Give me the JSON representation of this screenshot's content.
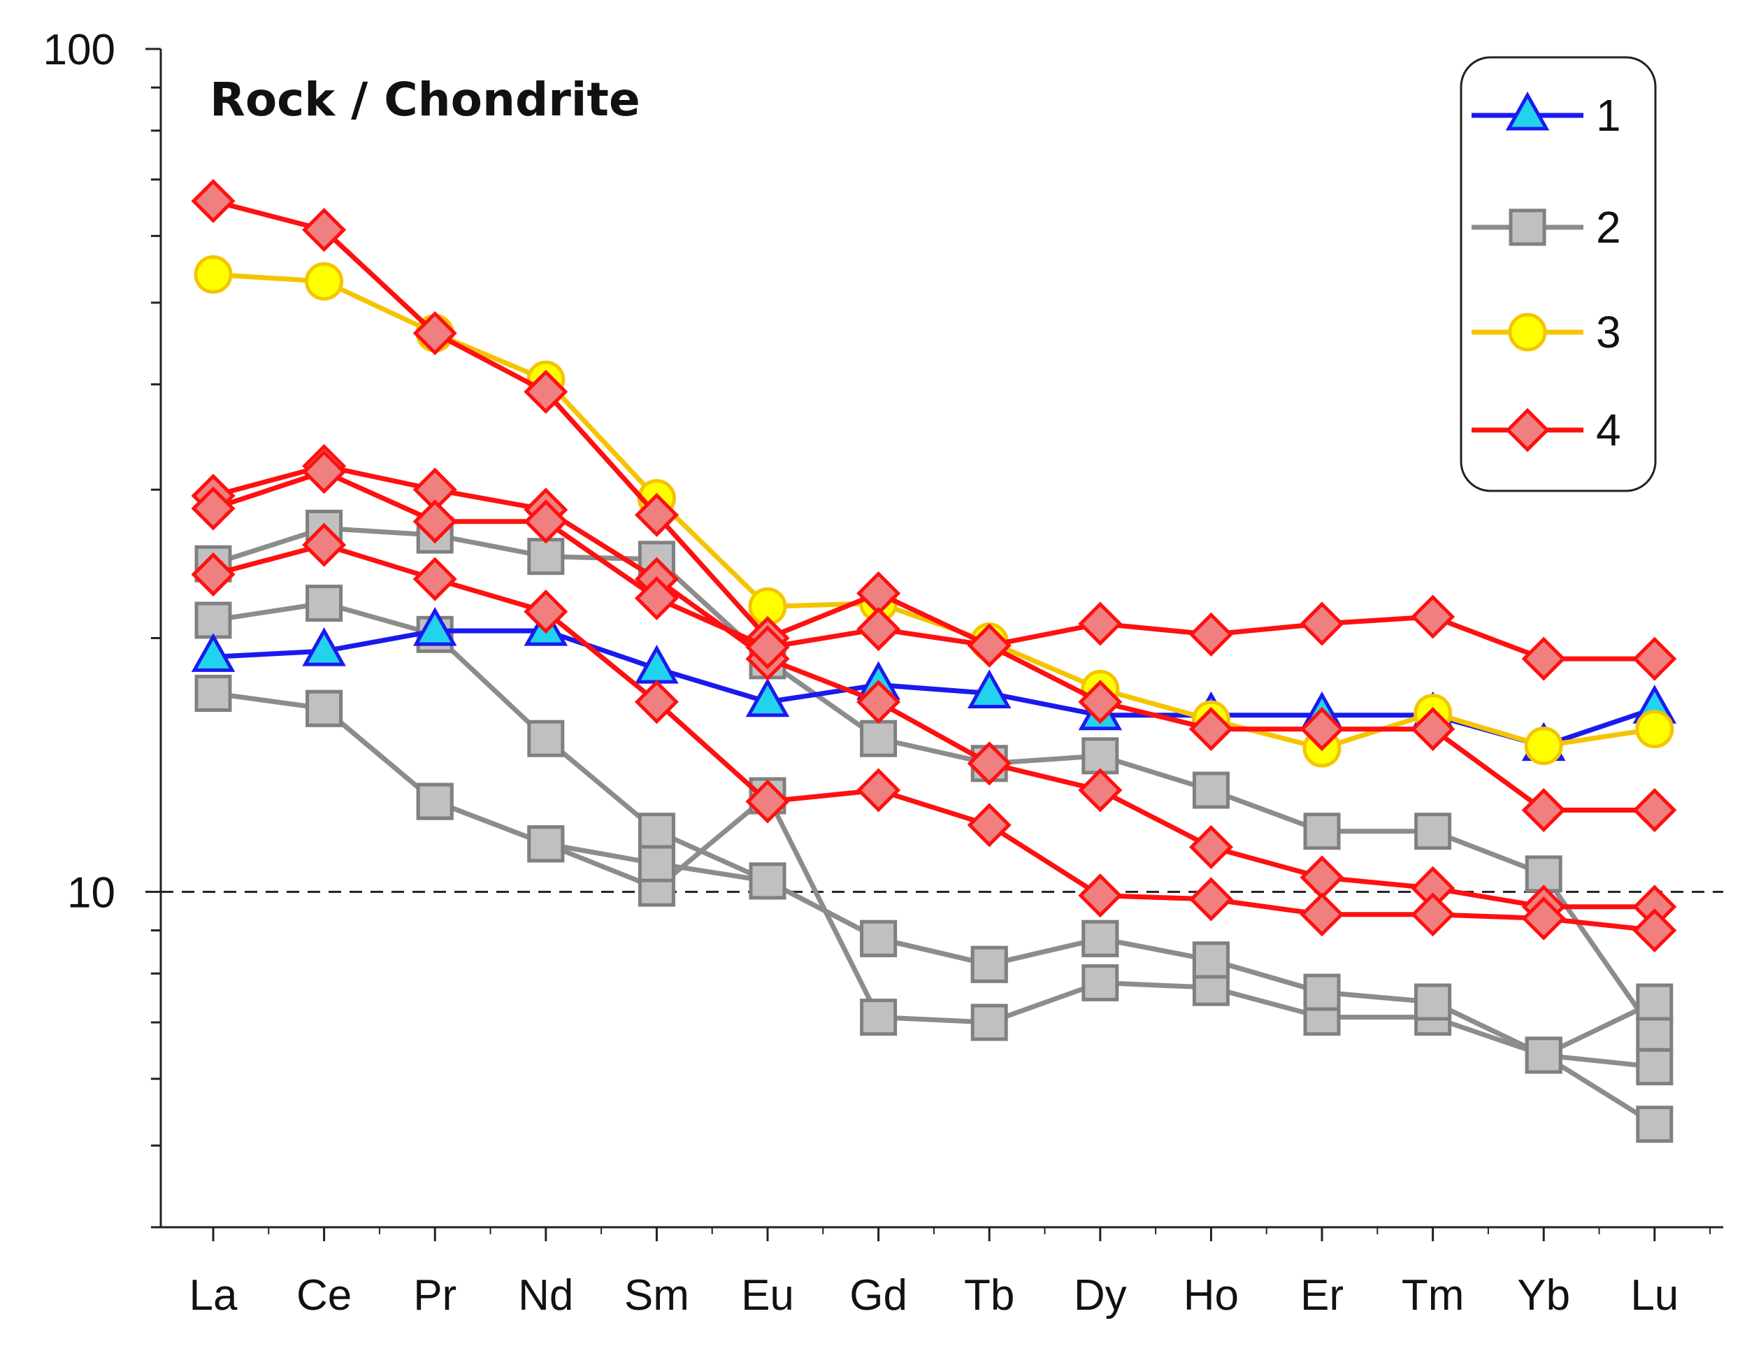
{
  "chart_data": {
    "type": "line",
    "title": "Rock / Chondrite",
    "yscale": "log",
    "ylim": [
      4,
      100
    ],
    "yticks": [
      {
        "value": 100,
        "label": "100"
      },
      {
        "value": 10,
        "label": "10"
      }
    ],
    "reference_line": {
      "value": 10,
      "style": "dashed"
    },
    "categories": [
      "La",
      "Ce",
      "Pr",
      "Nd",
      "Sm",
      "Eu",
      "Gd",
      "Tb",
      "Dy",
      "Ho",
      "Er",
      "Tm",
      "Yb",
      "Lu"
    ],
    "legend_position": "top-right",
    "groups": [
      {
        "name": "1",
        "color": "#1a1aee",
        "marker": "triangle",
        "marker_fill": "#22d3ee",
        "marker_stroke": "#1a1aee"
      },
      {
        "name": "2",
        "color": "#8c8c8c",
        "marker": "square",
        "marker_fill": "#c0c0c0",
        "marker_stroke": "#808080"
      },
      {
        "name": "3",
        "color": "#f5c400",
        "marker": "circle",
        "marker_fill": "#ffff00",
        "marker_stroke": "#f5c400"
      },
      {
        "name": "4",
        "color": "#ff1010",
        "marker": "diamond",
        "marker_fill": "#f08080",
        "marker_stroke": "#ff1010"
      }
    ],
    "series": [
      {
        "group": "2",
        "values": [
          24.5,
          27,
          26.5,
          25,
          24.8,
          18.8,
          15.2,
          14.2,
          14.5,
          13.2,
          11.8,
          11.8,
          10.5,
          6.8
        ]
      },
      {
        "group": "2",
        "values": [
          21,
          22,
          20.2,
          15.2,
          11.8,
          10.3,
          8.8,
          8.2,
          8.8,
          8.3,
          7.6,
          7.4,
          6.4,
          6.2
        ]
      },
      {
        "group": "2",
        "values": [
          17.2,
          16.5,
          12.8,
          11.4,
          10.1,
          13,
          7.1,
          7,
          7.8,
          7.7,
          7.1,
          7.1,
          6.4,
          5.3
        ]
      },
      {
        "group": "2",
        "values": [
          17.2,
          16.5,
          12.8,
          11.4,
          10.8,
          10.3,
          8.8,
          8.2,
          8.8,
          8.3,
          7.6,
          7.4,
          6.4,
          7.4
        ]
      },
      {
        "group": "1",
        "values": [
          19,
          19.3,
          20.4,
          20.4,
          18.4,
          16.8,
          17.6,
          17.2,
          16.2,
          16.2,
          16.2,
          16.2,
          14.9,
          16.5
        ]
      },
      {
        "group": "3",
        "values": [
          54,
          53,
          46,
          40.5,
          29.3,
          21.8,
          22,
          19.8,
          17.4,
          16,
          14.8,
          16.3,
          14.9,
          15.6
        ]
      },
      {
        "group": "4",
        "values": [
          66,
          61,
          46,
          39.2,
          28,
          20,
          22.6,
          19.6,
          16.8,
          15.6,
          15.6,
          15.6,
          12.5,
          12.5
        ]
      },
      {
        "group": "4",
        "values": [
          29.5,
          32,
          30,
          28.4,
          23.5,
          18.9,
          16.8,
          14.2,
          13.2,
          11.3,
          10.4,
          10.1,
          9.6,
          9.6
        ]
      },
      {
        "group": "4",
        "values": [
          28.5,
          31.5,
          27.5,
          27.5,
          22.3,
          19.5,
          20.5,
          19.6,
          20.8,
          20.2,
          20.8,
          21.2,
          18.9,
          18.9
        ]
      },
      {
        "group": "4",
        "values": [
          23.8,
          25.8,
          23.5,
          21.5,
          16.8,
          12.8,
          13.2,
          12,
          9.9,
          9.8,
          9.4,
          9.4,
          9.3,
          9
        ]
      }
    ]
  }
}
